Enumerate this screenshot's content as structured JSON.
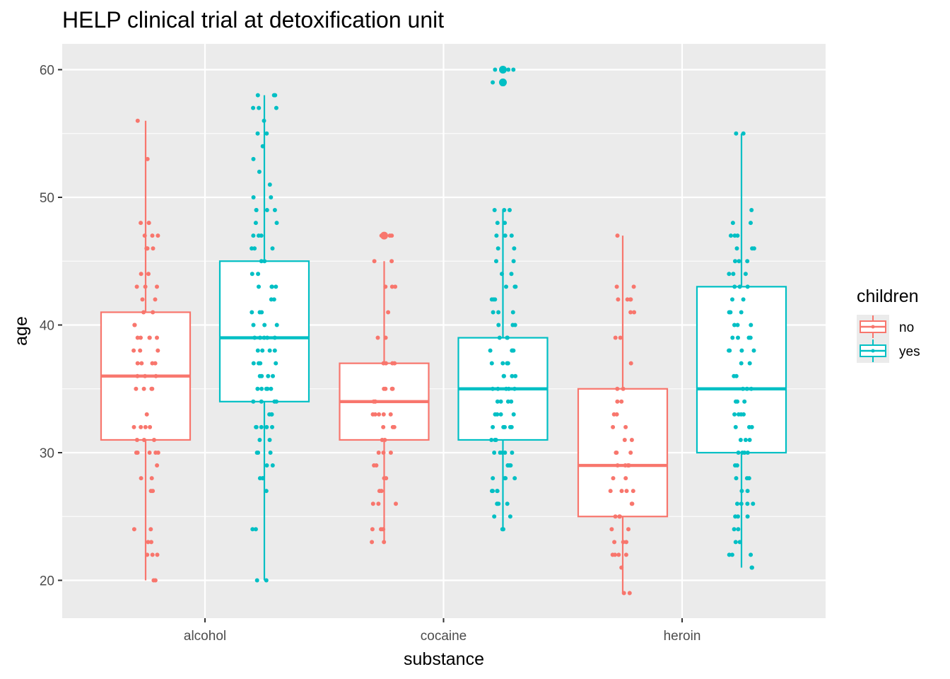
{
  "chart_data": {
    "type": "boxplot",
    "title": "HELP clinical trial at detoxification unit",
    "xlabel": "substance",
    "ylabel": "age",
    "ylim": [
      17,
      62
    ],
    "y_ticks": [
      20,
      30,
      40,
      50,
      60
    ],
    "grid": true,
    "categories": [
      "alcohol",
      "cocaine",
      "heroin"
    ],
    "legend": {
      "title": "children",
      "position": "right",
      "entries": [
        {
          "label": "no",
          "color": "#F8766D"
        },
        {
          "label": "yes",
          "color": "#00BFC4"
        }
      ]
    },
    "series": [
      {
        "name": "no",
        "color": "#F8766D",
        "boxes": [
          {
            "category": "alcohol",
            "min": 20,
            "q1": 31,
            "median": 36,
            "q3": 41,
            "max": 56,
            "outliers": []
          },
          {
            "category": "cocaine",
            "min": 23,
            "q1": 31,
            "median": 34,
            "q3": 37,
            "max": 45,
            "outliers": [
              47
            ]
          },
          {
            "category": "heroin",
            "min": 19,
            "q1": 25,
            "median": 29,
            "q3": 35,
            "max": 47,
            "outliers": []
          }
        ],
        "points": [
          [
            20,
            20,
            22,
            22,
            22,
            23,
            23,
            24,
            24,
            27,
            27,
            28,
            28,
            29,
            30,
            30,
            30,
            30,
            30,
            31,
            31,
            31,
            32,
            32,
            32,
            32,
            33,
            35,
            35,
            35,
            35,
            36,
            36,
            36,
            37,
            37,
            37,
            37,
            38,
            38,
            38,
            39,
            39,
            39,
            39,
            39,
            40,
            40,
            41,
            41,
            42,
            42,
            43,
            43,
            43,
            44,
            44,
            46,
            46,
            46,
            46,
            47,
            47,
            47,
            48,
            48,
            48,
            53,
            56
          ],
          [
            23,
            23,
            24,
            24,
            24,
            26,
            26,
            26,
            27,
            27,
            28,
            28,
            29,
            29,
            30,
            30,
            30,
            31,
            31,
            32,
            32,
            32,
            33,
            33,
            33,
            33,
            33,
            34,
            34,
            34,
            35,
            35,
            35,
            35,
            37,
            37,
            37,
            37,
            39,
            39,
            41,
            43,
            43,
            43,
            45,
            45,
            47,
            47,
            47,
            47
          ],
          [
            19,
            19,
            21,
            22,
            22,
            22,
            22,
            23,
            23,
            23,
            24,
            24,
            25,
            25,
            25,
            26,
            26,
            27,
            27,
            27,
            27,
            28,
            28,
            29,
            29,
            29,
            29,
            30,
            30,
            30,
            31,
            31,
            32,
            32,
            33,
            33,
            34,
            34,
            35,
            35,
            37,
            39,
            39,
            41,
            41,
            42,
            42,
            42,
            42,
            43,
            43,
            47
          ]
        ]
      },
      {
        "name": "yes",
        "color": "#00BFC4",
        "boxes": [
          {
            "category": "alcohol",
            "min": 20,
            "q1": 34,
            "median": 39,
            "q3": 45,
            "max": 58,
            "outliers": []
          },
          {
            "category": "cocaine",
            "min": 24,
            "q1": 31,
            "median": 35,
            "q3": 39,
            "max": 49,
            "outliers": [
              59,
              60
            ]
          },
          {
            "category": "heroin",
            "min": 21,
            "q1": 30,
            "median": 35,
            "q3": 43,
            "max": 55,
            "outliers": []
          }
        ],
        "points": [
          [
            20,
            20,
            24,
            24,
            27,
            28,
            28,
            28,
            29,
            29,
            30,
            30,
            30,
            31,
            31,
            32,
            32,
            32,
            32,
            32,
            33,
            33,
            33,
            34,
            34,
            34,
            34,
            35,
            35,
            35,
            35,
            35,
            36,
            36,
            36,
            36,
            37,
            37,
            37,
            37,
            38,
            38,
            38,
            38,
            39,
            39,
            39,
            39,
            39,
            40,
            40,
            40,
            41,
            41,
            41,
            42,
            42,
            43,
            43,
            43,
            43,
            44,
            44,
            45,
            45,
            46,
            46,
            46,
            47,
            47,
            47,
            48,
            48,
            49,
            49,
            49,
            49,
            50,
            50,
            51,
            52,
            53,
            54,
            55,
            55,
            56,
            57,
            57,
            57,
            58,
            58,
            58
          ],
          [
            24,
            24,
            25,
            25,
            26,
            26,
            26,
            26,
            27,
            27,
            27,
            27,
            28,
            28,
            28,
            28,
            29,
            29,
            29,
            29,
            30,
            30,
            30,
            30,
            30,
            31,
            31,
            31,
            32,
            32,
            32,
            32,
            32,
            33,
            33,
            33,
            33,
            34,
            34,
            34,
            34,
            35,
            35,
            35,
            35,
            35,
            36,
            36,
            36,
            36,
            37,
            37,
            37,
            37,
            38,
            38,
            38,
            38,
            39,
            39,
            39,
            40,
            40,
            40,
            41,
            41,
            41,
            42,
            42,
            42,
            43,
            43,
            43,
            44,
            44,
            45,
            45,
            46,
            46,
            47,
            47,
            47,
            48,
            48,
            49,
            49,
            49,
            59,
            59,
            60,
            60,
            60
          ],
          [
            21,
            21,
            22,
            22,
            22,
            23,
            23,
            24,
            24,
            25,
            25,
            25,
            26,
            26,
            26,
            26,
            27,
            27,
            28,
            28,
            28,
            29,
            29,
            30,
            30,
            30,
            30,
            31,
            31,
            31,
            32,
            32,
            32,
            33,
            33,
            33,
            33,
            34,
            34,
            34,
            35,
            35,
            35,
            36,
            36,
            37,
            37,
            38,
            38,
            38,
            38,
            39,
            39,
            39,
            39,
            40,
            40,
            40,
            41,
            41,
            41,
            42,
            42,
            43,
            43,
            43,
            44,
            44,
            44,
            45,
            45,
            45,
            46,
            46,
            46,
            47,
            47,
            47,
            48,
            48,
            49,
            55,
            55
          ]
        ]
      }
    ]
  }
}
